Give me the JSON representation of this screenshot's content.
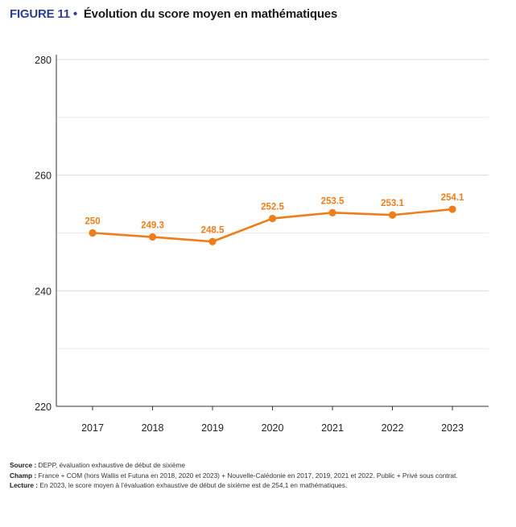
{
  "figure": {
    "label": "FIGURE 11",
    "separator": " •",
    "title": "Évolution du score moyen en mathématiques"
  },
  "colors": {
    "series": "#ef7d1a",
    "figure_label": "#2e3f8f",
    "grid": "#d9d9d9",
    "axis": "#333333"
  },
  "chart_data": {
    "type": "line",
    "categories": [
      "2017",
      "2018",
      "2019",
      "2020",
      "2021",
      "2022",
      "2023"
    ],
    "series": [
      {
        "values": [
          250,
          249.3,
          248.5,
          252.5,
          253.5,
          253.1,
          254.1
        ],
        "labels": [
          "250",
          "249.3",
          "248.5",
          "252.5",
          "253.5",
          "253.1",
          "254.1"
        ]
      }
    ],
    "title": "Évolution du score moyen en mathématiques",
    "xlabel": "",
    "ylabel": "",
    "ylim": [
      220,
      280
    ],
    "yticks": [
      220,
      240,
      260,
      280
    ],
    "minor_gridlines": [
      230,
      250,
      270
    ],
    "grid": true,
    "legend": "none"
  },
  "notes": {
    "source_label": "Source :",
    "source_text": " DEPP, évaluation exhaustive de début de sixième",
    "champ_label": "Champ :",
    "champ_text": " France + COM (hors Wallis et Futuna en 2018, 2020 et 2023) + Nouvelle-Calédonie en 2017, 2019, 2021 et 2022. Public + Privé sous contrat.",
    "lecture_label": "Lecture :",
    "lecture_text": " En 2023, le score moyen à l’évaluation exhaustive de début de sixième est de 254,1 en mathématiques."
  }
}
